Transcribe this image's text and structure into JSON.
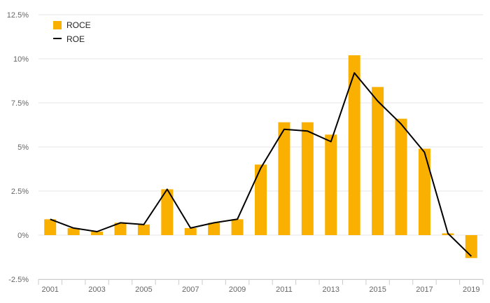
{
  "chart_data": {
    "type": "bar",
    "categories": [
      "2001",
      "2002",
      "2003",
      "2004",
      "2005",
      "2006",
      "2007",
      "2008",
      "2009",
      "2010",
      "2011",
      "2012",
      "2013",
      "2014",
      "2015",
      "2016",
      "2017",
      "2018",
      "2019"
    ],
    "x_tick_labels": [
      "2001",
      "2003",
      "2005",
      "2007",
      "2009",
      "2011",
      "2013",
      "2015",
      "2017",
      "2019"
    ],
    "ylim": [
      -2.5,
      12.5
    ],
    "y_ticks": [
      -2.5,
      0,
      2.5,
      5,
      7.5,
      10,
      12.5
    ],
    "y_tick_labels": [
      "-2.5%",
      "0%",
      "2.5%",
      "5%",
      "7.5%",
      "10%",
      "12.5%"
    ],
    "grid": true,
    "legend_position": "top-left",
    "series": [
      {
        "name": "ROCE",
        "kind": "bar",
        "color": "#F9B000",
        "values": [
          0.9,
          0.4,
          0.2,
          0.7,
          0.6,
          2.6,
          0.4,
          0.7,
          0.9,
          4.0,
          6.4,
          6.4,
          5.7,
          10.2,
          8.4,
          6.6,
          4.9,
          0.1,
          -1.3
        ]
      },
      {
        "name": "ROE",
        "kind": "line",
        "color": "#000000",
        "values": [
          0.9,
          0.4,
          0.2,
          0.7,
          0.6,
          2.6,
          0.4,
          0.7,
          0.9,
          3.8,
          6.0,
          5.9,
          5.3,
          9.2,
          7.6,
          6.3,
          4.7,
          0.1,
          -1.2
        ]
      }
    ]
  }
}
